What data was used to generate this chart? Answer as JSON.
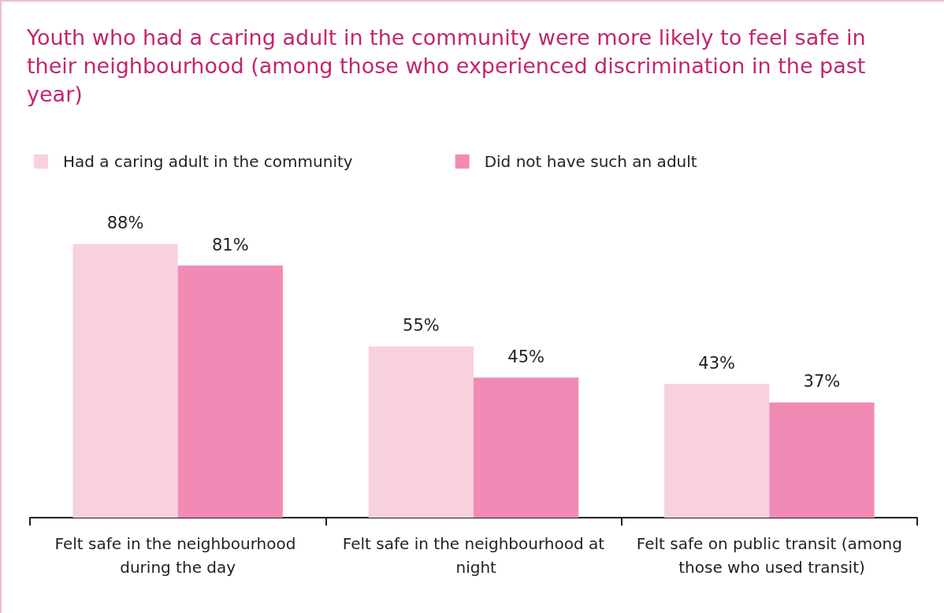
{
  "chart_data": {
    "type": "bar",
    "title": "Youth who had a caring adult in the community were more likely to feel safe in their neighbourhood (among those who experienced discrimination in the past year)",
    "categories": [
      "Felt safe in the neighbourhood during the day",
      "Felt safe in the neighbourhood at night",
      "Felt safe on public transit (among those who used transit)"
    ],
    "series": [
      {
        "name": "Had a caring adult in the community",
        "color": "#f7d2dc",
        "values": [
          88,
          55,
          43
        ],
        "value_labels": [
          "88%",
          "55%",
          "43%"
        ]
      },
      {
        "name": "Did not have such an adult",
        "color": "#f28ab6",
        "values": [
          81,
          45,
          37
        ],
        "value_labels": [
          "81%",
          "45%",
          "37%"
        ]
      }
    ],
    "legend": "top left"
  }
}
